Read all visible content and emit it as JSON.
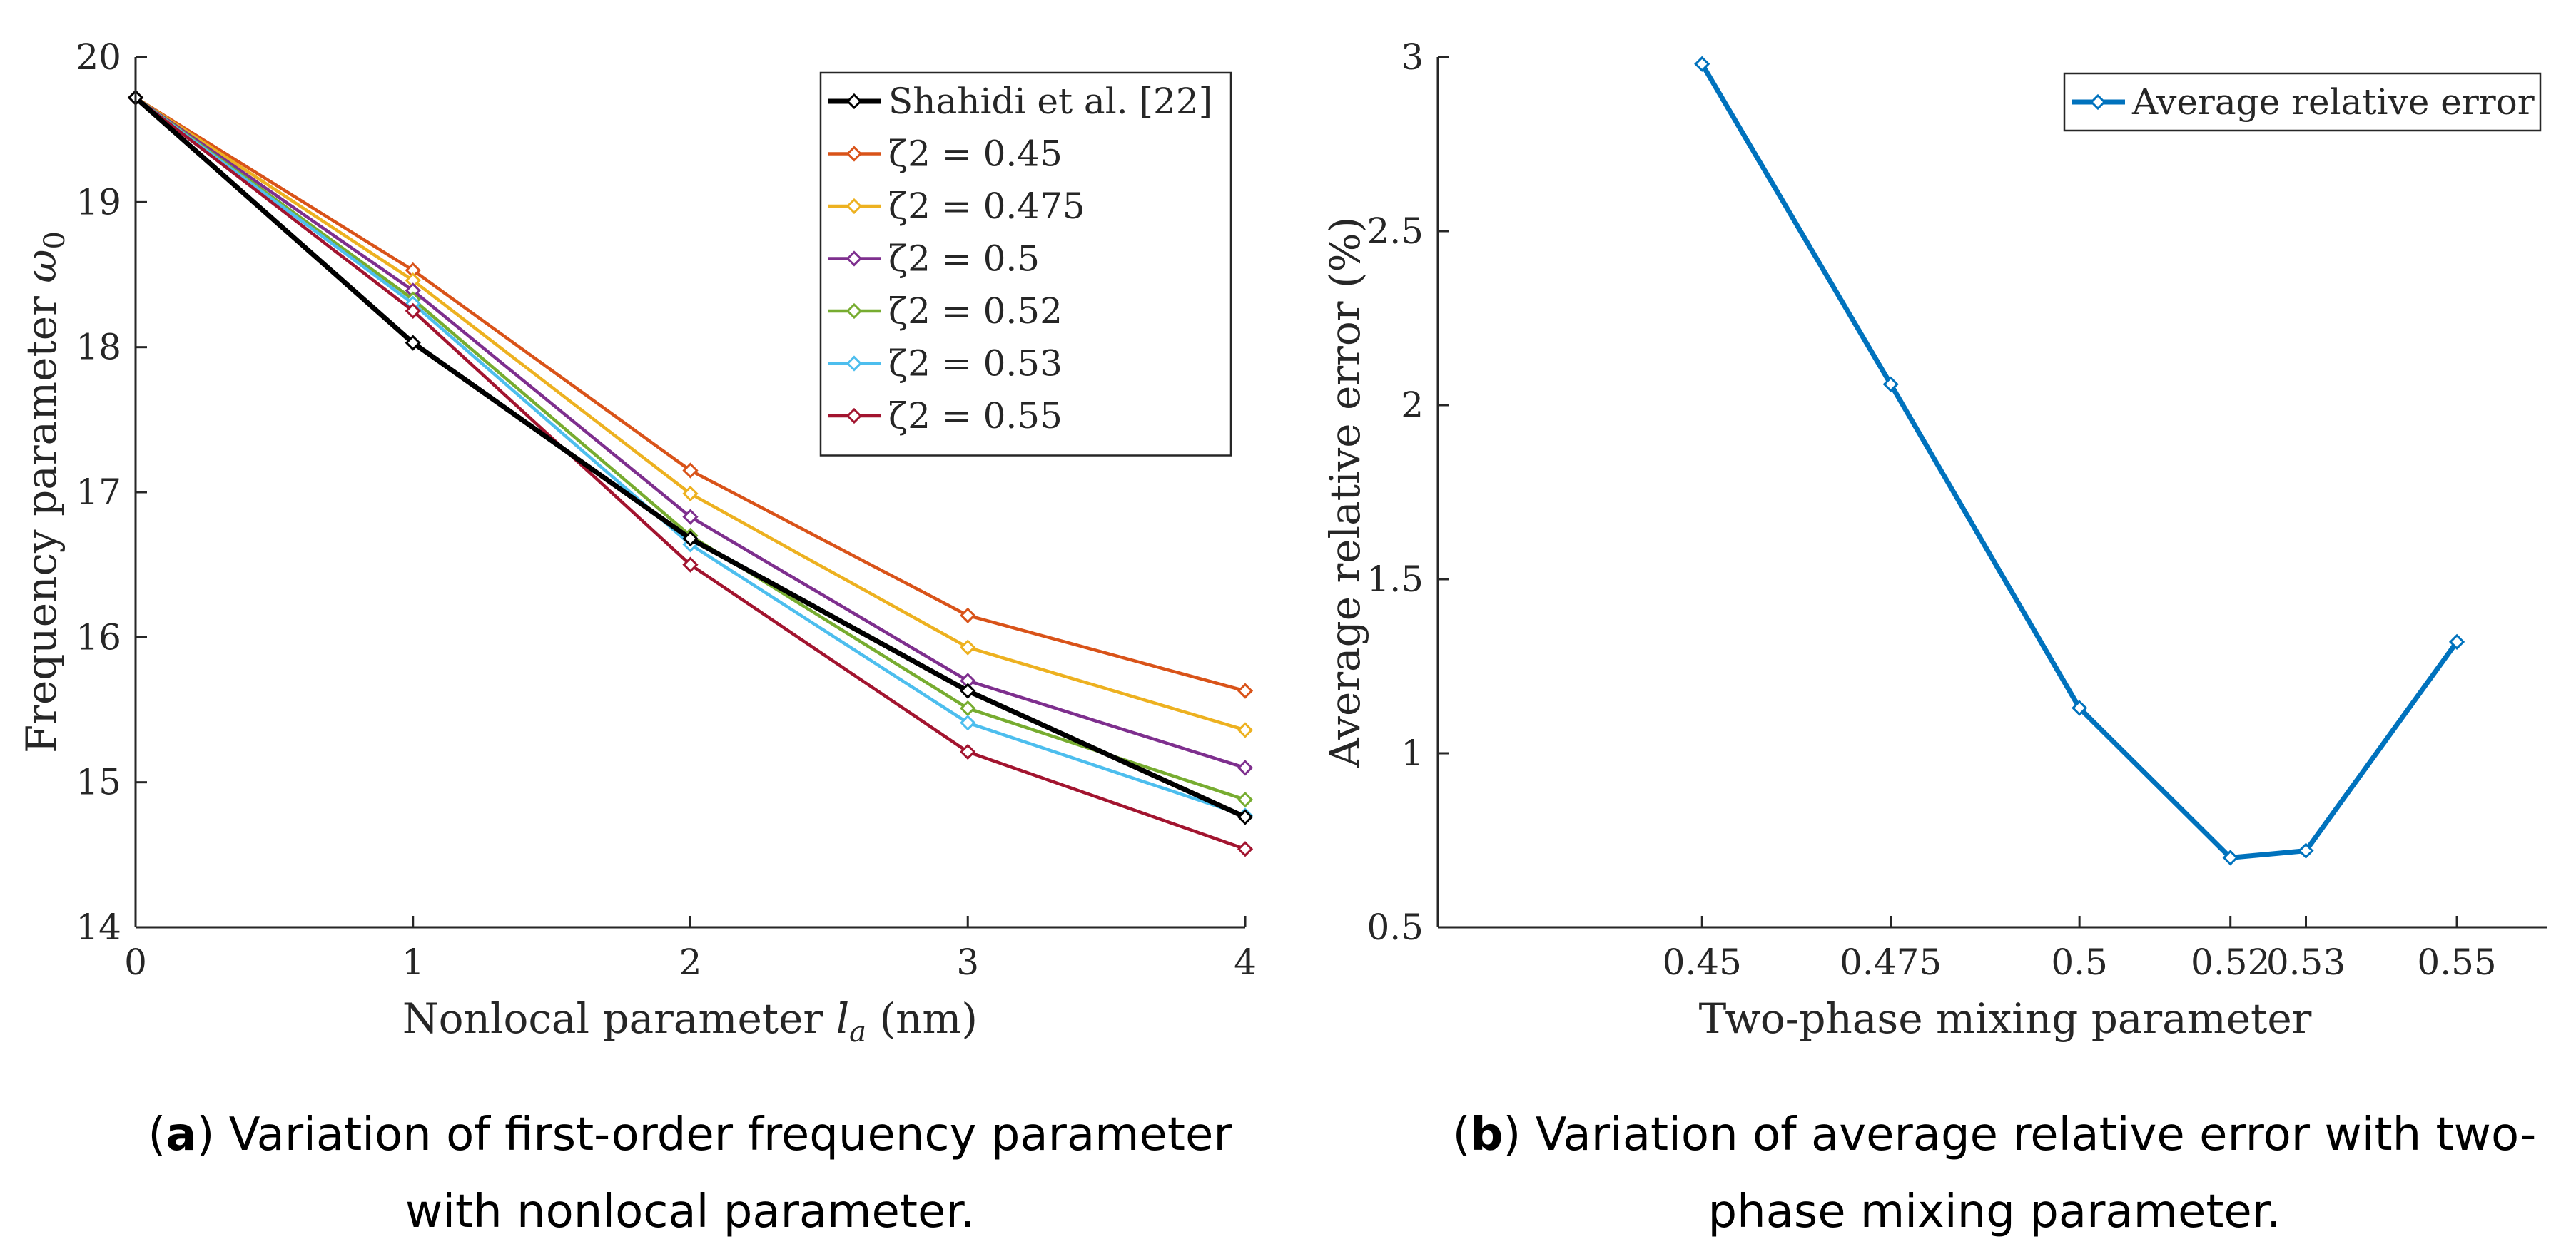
{
  "chart_data": [
    {
      "type": "line",
      "xlabel": "Nonlocal parameter l_a (nm)",
      "ylabel": "Frequency parameter ω_0",
      "x": [
        0,
        1,
        2,
        3,
        4
      ],
      "xlim": [
        0,
        4
      ],
      "ylim": [
        14,
        20
      ],
      "xticks": [
        "0",
        "1",
        "2",
        "3",
        "4"
      ],
      "yticks": [
        "14",
        "15",
        "16",
        "17",
        "18",
        "19",
        "20"
      ],
      "legend_position": "top-right",
      "series": [
        {
          "name": "Shahidi et al. [22]",
          "color": "#000000",
          "values": [
            19.72,
            18.03,
            16.68,
            15.63,
            14.76
          ]
        },
        {
          "name": "ζ2 = 0.45",
          "color": "#D95319",
          "values": [
            19.72,
            18.53,
            17.15,
            16.15,
            15.63
          ]
        },
        {
          "name": "ζ2 = 0.475",
          "color": "#EDB120",
          "values": [
            19.72,
            18.46,
            16.99,
            15.93,
            15.36
          ]
        },
        {
          "name": "ζ2 = 0.5",
          "color": "#7E2F8E",
          "values": [
            19.72,
            18.39,
            16.83,
            15.7,
            15.1
          ]
        },
        {
          "name": "ζ2 = 0.52",
          "color": "#77AC30",
          "values": [
            19.72,
            18.33,
            16.7,
            15.51,
            14.88
          ]
        },
        {
          "name": "ζ2 = 0.53",
          "color": "#4DBEEE",
          "values": [
            19.72,
            18.3,
            16.64,
            15.41,
            14.77
          ]
        },
        {
          "name": "ζ2 = 0.55",
          "color": "#A2142F",
          "values": [
            19.72,
            18.25,
            16.5,
            15.21,
            14.54
          ]
        }
      ]
    },
    {
      "type": "line",
      "xlabel": "Two-phase mixing parameter",
      "ylabel": "Average relative error (%)",
      "categories": [
        "0.45",
        "0.475",
        "0.5",
        "0.52",
        "0.53",
        "0.55"
      ],
      "x": [
        0.45,
        0.475,
        0.5,
        0.52,
        0.53,
        0.55
      ],
      "xlim": [
        0.415,
        0.562
      ],
      "ylim": [
        0.5,
        3
      ],
      "yticks": [
        "0.5",
        "1",
        "1.5",
        "2",
        "2.5",
        "3"
      ],
      "legend_position": "top-right",
      "series": [
        {
          "name": "Average relative error",
          "color": "#0072BD",
          "values": [
            2.98,
            2.06,
            1.13,
            0.7,
            0.72,
            1.32
          ]
        }
      ]
    }
  ],
  "captions": {
    "a": {
      "letter": "a",
      "line1": " Variation of first-order frequency parameter",
      "line2": "with nonlocal parameter."
    },
    "b": {
      "letter": "b",
      "line1": " Variation of average relative error with two-",
      "line2": "phase mixing parameter."
    }
  }
}
